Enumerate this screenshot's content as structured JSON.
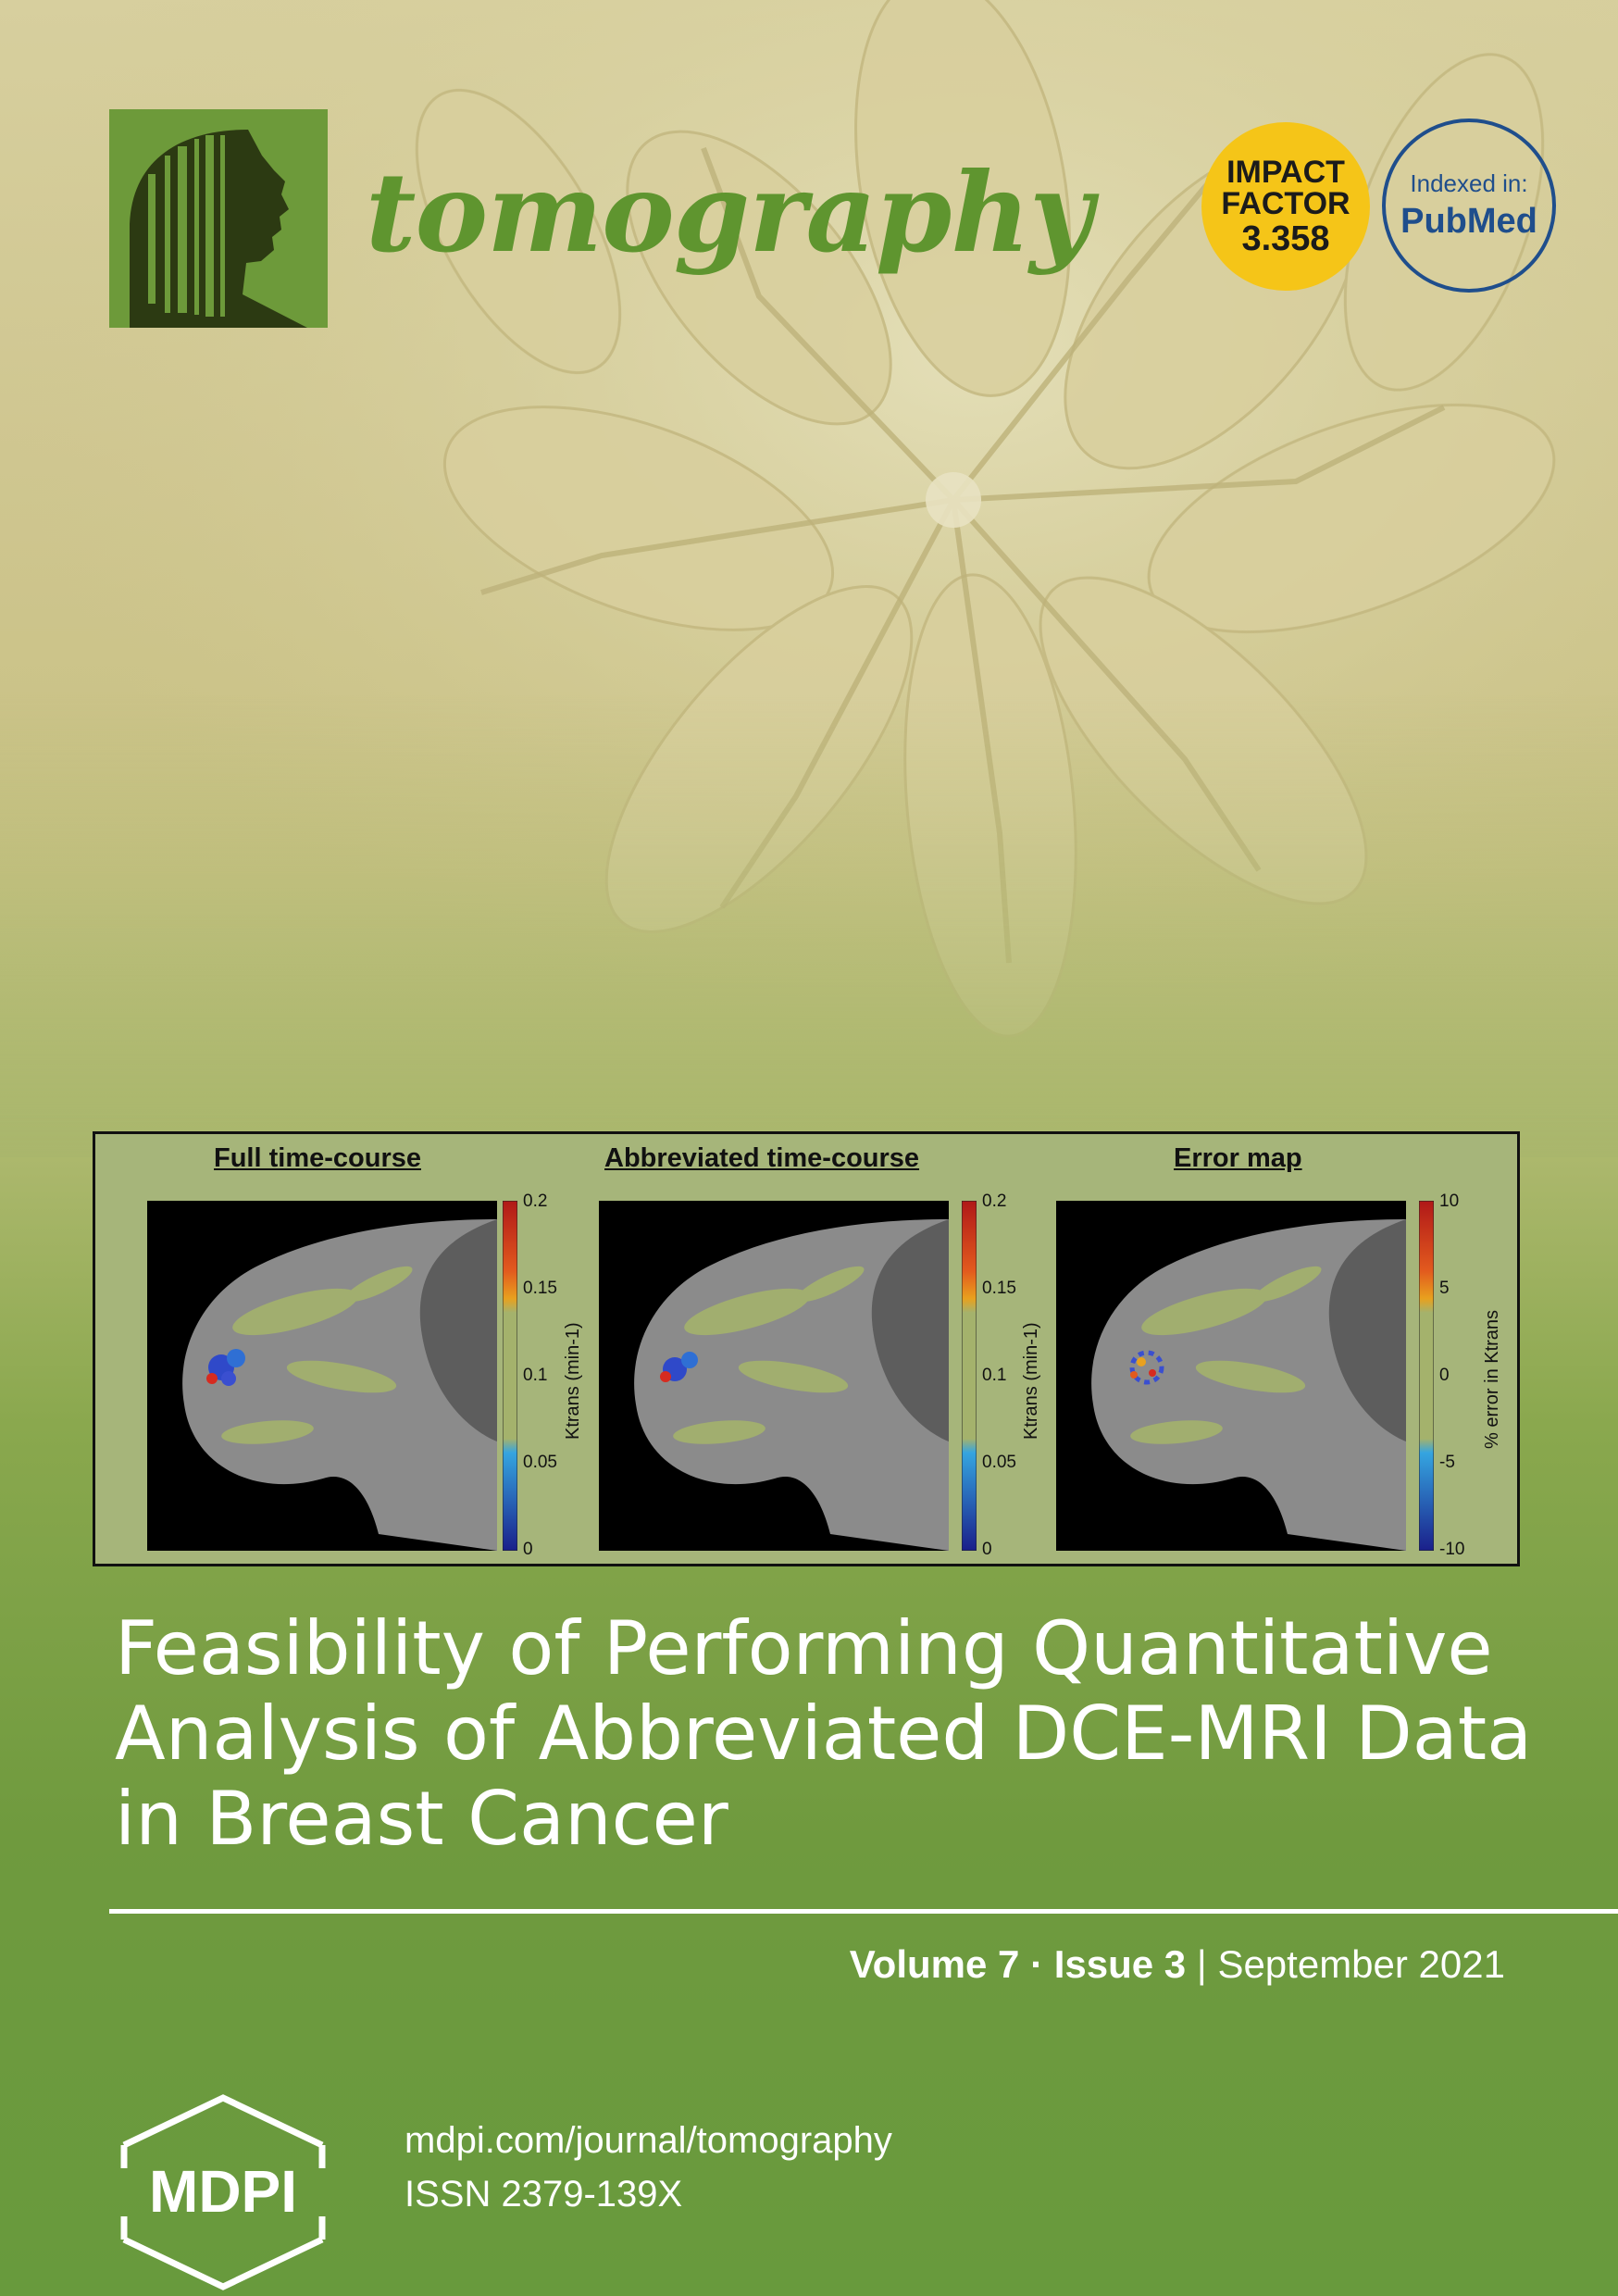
{
  "journal": {
    "name": "tomography",
    "logo_icon": "head-barcode-icon"
  },
  "badges": {
    "impact_line1": "IMPACT",
    "impact_line2": "FACTOR",
    "impact_value": "3.358",
    "pubmed_line1": "Indexed in:",
    "pubmed_line2": "PubMed"
  },
  "figure": {
    "panels": [
      {
        "title": "Full time-course",
        "colorbar_ticks": [
          "0.2",
          "0.15",
          "0.1",
          "0.05",
          "0"
        ],
        "colorbar_label": "Ktrans (min-1)"
      },
      {
        "title": "Abbreviated time-course",
        "colorbar_ticks": [
          "0.2",
          "0.15",
          "0.1",
          "0.05",
          "0"
        ],
        "colorbar_label": "Ktrans (min-1)"
      },
      {
        "title": "Error map",
        "colorbar_ticks": [
          "10",
          "5",
          "0",
          "-5",
          "-10"
        ],
        "colorbar_label": "% error in Ktrans"
      }
    ]
  },
  "article": {
    "title_line1": "Feasibility of Performing Quantitative",
    "title_line2": "Analysis of Abbreviated DCE-MRI Data",
    "title_line3": "in Breast Cancer"
  },
  "issue": {
    "volume": "Volume 7",
    "separator": "·",
    "issue": "Issue 3",
    "divider": "|",
    "date": "September 2021"
  },
  "publisher": {
    "logo_text": "MDPI",
    "url": "mdpi.com/journal/tomography",
    "issn": "ISSN 2379-139X"
  },
  "colors": {
    "accent_green": "#5f952f",
    "impact_yellow": "#f5c518",
    "pubmed_blue": "#1f4e8c"
  }
}
